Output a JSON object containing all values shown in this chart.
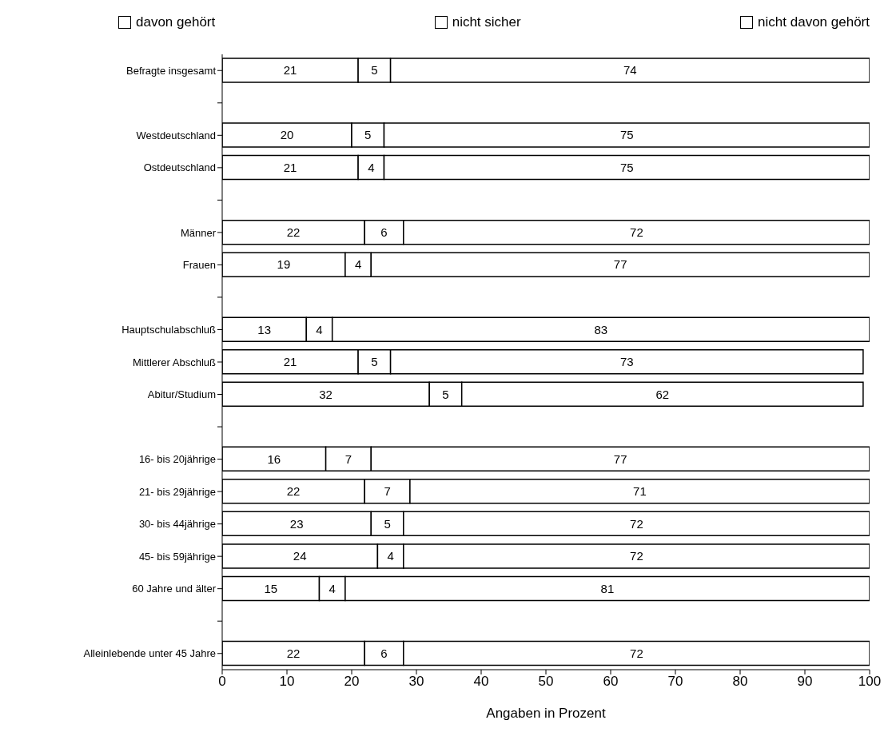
{
  "chart_data": {
    "type": "bar",
    "orientation": "horizontal",
    "stacked": true,
    "xlabel": "Angaben in Prozent",
    "categories": [
      "Befragte insgesamt",
      null,
      "Westdeutschland",
      "Ostdeutschland",
      null,
      "Männer",
      "Frauen",
      null,
      "Hauptschulabschluß",
      "Mittlerer Abschluß",
      "Abitur/Studium",
      null,
      "16- bis 20jährige",
      "21- bis 29jährige",
      "30- bis 44jährige",
      "45- bis 59jährige",
      "60 Jahre und älter",
      null,
      "Alleinlebende unter 45 Jahre"
    ],
    "series": [
      {
        "name": "davon gehört",
        "color": "#ffffff",
        "values": [
          21,
          null,
          20,
          21,
          null,
          22,
          19,
          null,
          13,
          21,
          32,
          null,
          16,
          22,
          23,
          24,
          15,
          null,
          22
        ]
      },
      {
        "name": "nicht sicher",
        "color": "#ffffff",
        "values": [
          5,
          null,
          5,
          4,
          null,
          6,
          4,
          null,
          4,
          5,
          5,
          null,
          7,
          7,
          5,
          4,
          4,
          null,
          6
        ]
      },
      {
        "name": "nicht davon gehört",
        "color": "#ffffff",
        "values": [
          74,
          null,
          75,
          75,
          null,
          72,
          77,
          null,
          83,
          73,
          62,
          null,
          77,
          71,
          72,
          72,
          81,
          null,
          72
        ]
      }
    ],
    "xlim": [
      0,
      100
    ],
    "xticks": [
      0,
      10,
      20,
      30,
      40,
      50,
      60,
      70,
      80,
      90,
      100
    ],
    "data_labels": true,
    "legend": "top",
    "grid": false
  }
}
